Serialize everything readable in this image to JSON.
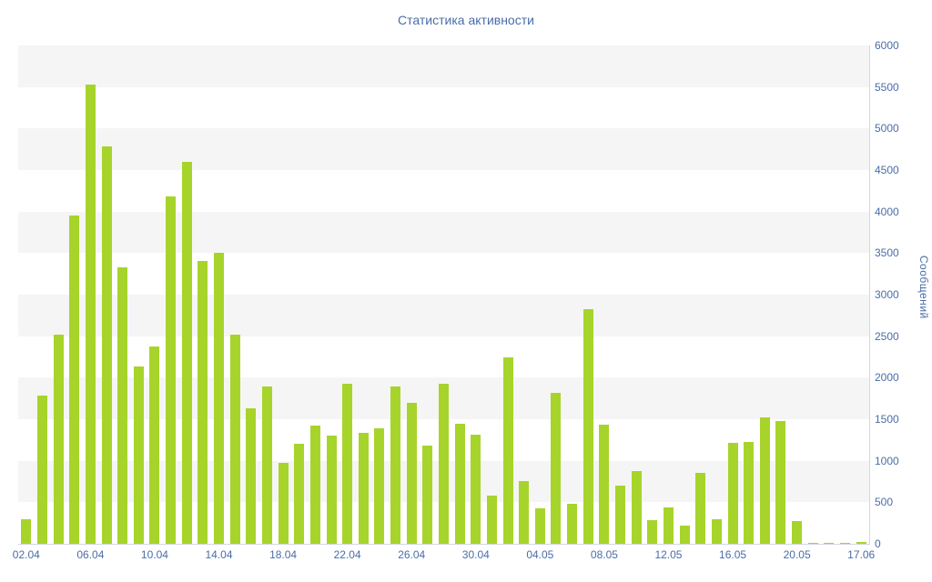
{
  "chart_data": {
    "type": "bar",
    "title": "Статистика активности",
    "ylabel": "Сообщений",
    "xlabel": "",
    "ylim": [
      0,
      6000
    ],
    "ytick_step": 500,
    "xtick_every": 4,
    "legend": "none",
    "grid": "horizontal-bands",
    "colors": {
      "bar": "#a7d42b",
      "band_even": "#f5f5f5",
      "band_odd": "#ffffff",
      "axis_text": "#4a6da7",
      "axis_line": "#d3d7dd",
      "background": "#ffffff"
    },
    "categories": [
      "02.04",
      "03.04",
      "04.04",
      "05.04",
      "06.04",
      "07.04",
      "08.04",
      "09.04",
      "10.04",
      "11.04",
      "12.04",
      "13.04",
      "14.04",
      "15.04",
      "16.04",
      "17.04",
      "18.04",
      "19.04",
      "20.04",
      "21.04",
      "22.04",
      "23.04",
      "24.04",
      "25.04",
      "26.04",
      "27.04",
      "28.04",
      "29.04",
      "30.04",
      "01.05",
      "02.05",
      "03.05",
      "04.05",
      "05.05",
      "06.05",
      "07.05",
      "08.05",
      "09.05",
      "10.05",
      "11.05",
      "12.05",
      "13.05",
      "14.05",
      "15.05",
      "16.05",
      "17.05",
      "18.05",
      "19.05",
      "20.05",
      "",
      "",
      "",
      "17.06"
    ],
    "values": [
      300,
      1780,
      2520,
      3950,
      5530,
      4780,
      3330,
      2130,
      2380,
      4180,
      4600,
      3400,
      3500,
      2520,
      1630,
      1890,
      980,
      1210,
      1420,
      1300,
      1930,
      1340,
      1390,
      1890,
      1700,
      1180,
      1930,
      1450,
      1310,
      580,
      2250,
      760,
      430,
      1820,
      480,
      2820,
      1430,
      700,
      880,
      290,
      440,
      220,
      850,
      300,
      1220,
      1230,
      1520,
      1480,
      270,
      15,
      8,
      8,
      25
    ],
    "xtick_labels": [
      "02.04",
      "06.04",
      "10.04",
      "14.04",
      "18.04",
      "22.04",
      "26.04",
      "30.04",
      "04.05",
      "08.05",
      "12.05",
      "16.05",
      "20.05",
      "17.06"
    ]
  }
}
